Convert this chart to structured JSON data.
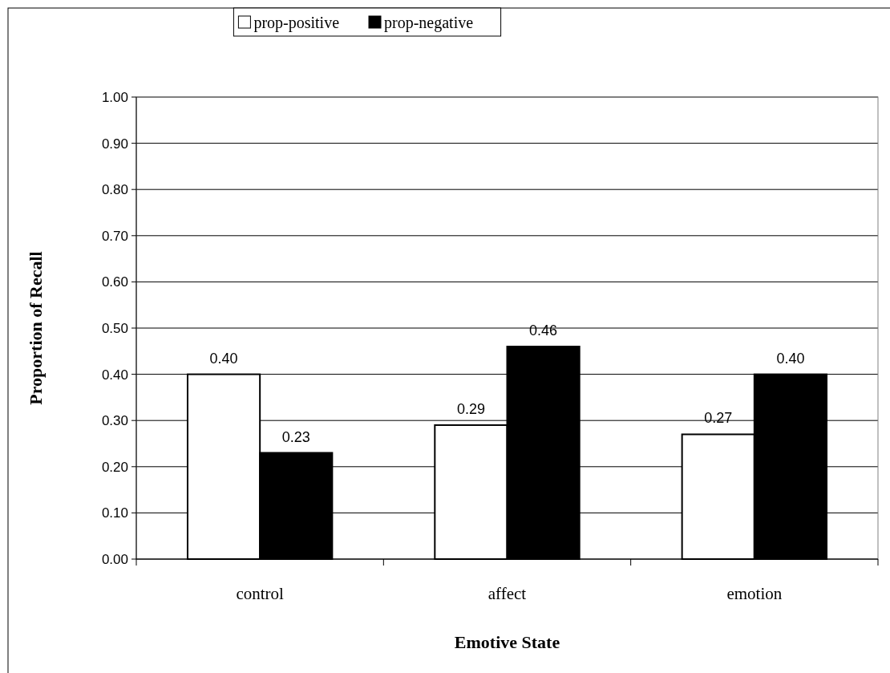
{
  "chart_data": {
    "type": "bar",
    "xlabel": "Emotive State",
    "ylabel": "Proportion of Recall",
    "categories": [
      "control",
      "affect",
      "emotion"
    ],
    "series": [
      {
        "name": "prop-positive",
        "color": "#ffffff",
        "values": [
          0.4,
          0.29,
          0.27
        ],
        "value_labels": [
          "0.40",
          "0.29",
          "0.27"
        ]
      },
      {
        "name": "prop-negative",
        "color": "#000000",
        "values": [
          0.23,
          0.46,
          0.4
        ],
        "value_labels": [
          "0.23",
          "0.46",
          "0.40"
        ]
      }
    ],
    "ylim": [
      0,
      1
    ],
    "yticks": [
      {
        "value": 0,
        "label": "0.00"
      },
      {
        "value": 0.1,
        "label": "0.10"
      },
      {
        "value": 0.2,
        "label": "0.20"
      },
      {
        "value": 0.3,
        "label": "0.30"
      },
      {
        "value": 0.4,
        "label": "0.40"
      },
      {
        "value": 0.5,
        "label": "0.50"
      },
      {
        "value": 0.6,
        "label": "0.60"
      },
      {
        "value": 0.7,
        "label": "0.70"
      },
      {
        "value": 0.8,
        "label": "0.80"
      },
      {
        "value": 0.9,
        "label": "0.90"
      },
      {
        "value": 1,
        "label": "1.00"
      }
    ],
    "grid": "y",
    "legend": "top"
  }
}
